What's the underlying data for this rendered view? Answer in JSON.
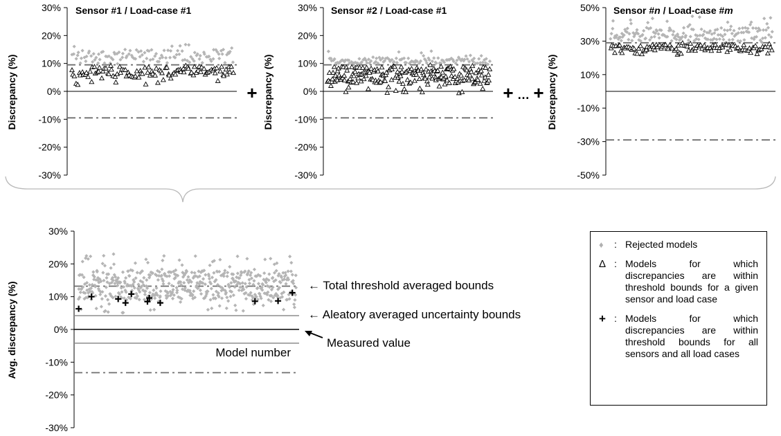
{
  "chart_data": [
    {
      "type": "scatter",
      "id": "panel1",
      "title": "Sensor #1 / Load-case #1",
      "ylabel": "Discrepancy (%)",
      "ylim": [
        -30,
        30
      ],
      "yticks": [
        "30%",
        "20%",
        "10%",
        "0%",
        "-10%",
        "-20%",
        "-30%"
      ],
      "threshold_bounds": [
        9.5,
        -9.5
      ],
      "measured_value": 0,
      "series": [
        {
          "name": "Rejected models",
          "band": [
            9,
            19
          ],
          "typical": [
            10,
            15
          ]
        },
        {
          "name": "Accepted (within threshold)",
          "band": [
            2,
            9.5
          ],
          "typical": [
            5,
            9
          ]
        }
      ]
    },
    {
      "type": "scatter",
      "id": "panel2",
      "title": "Sensor #2 / Load-case #1",
      "ylabel": "Discrepancy (%)",
      "ylim": [
        -30,
        30
      ],
      "yticks": [
        "30%",
        "20%",
        "10%",
        "0%",
        "-10%",
        "-20%",
        "-30%"
      ],
      "threshold_bounds": [
        9.5,
        -9.5
      ],
      "measured_value": 0,
      "series": [
        {
          "name": "Rejected models",
          "band": [
            9.5,
            15
          ],
          "typical": [
            10,
            12
          ]
        },
        {
          "name": "Accepted (within threshold)",
          "band": [
            -1,
            9.5
          ],
          "typical": [
            3,
            9
          ]
        }
      ]
    },
    {
      "type": "scatter",
      "id": "panel3",
      "title_parts": [
        "Sensor #",
        "n",
        " / Load-case #",
        "m"
      ],
      "ylabel": "Discrepancy (%)",
      "ylim": [
        -50,
        50
      ],
      "yticks": [
        "50%",
        "30%",
        "10%",
        "-10%",
        "-30%",
        "-50%"
      ],
      "threshold_bounds": [
        29,
        -29
      ],
      "measured_value": 0,
      "series": [
        {
          "name": "Rejected models",
          "band": [
            28,
            45
          ],
          "typical": [
            30,
            38
          ]
        },
        {
          "name": "Accepted (within threshold)",
          "band": [
            22,
            29
          ],
          "typical": [
            24,
            28
          ]
        }
      ]
    },
    {
      "type": "scatter",
      "id": "combined",
      "ylabel": "Avg. discrepancy (%)",
      "xlabel": "Model number",
      "ylim": [
        -30,
        30
      ],
      "yticks": [
        "30%",
        "20%",
        "10%",
        "0%",
        "-10%",
        "-20%",
        "-30%"
      ],
      "total_threshold_bounds": [
        13.2,
        -13.2
      ],
      "aleatory_bounds": [
        4.2,
        -4.2
      ],
      "measured_value": 0,
      "series": [
        {
          "name": "Rejected models",
          "band": [
            5,
            23
          ],
          "typical": [
            9,
            18
          ]
        },
        {
          "name": "Models within threshold for all sensors and load cases",
          "x": [
            5,
            40,
            113,
            133,
            149,
            193,
            198,
            228,
            487,
            550,
            589
          ],
          "y": [
            6.3,
            10.0,
            9.3,
            8.1,
            10.8,
            8.5,
            9.6,
            8.1,
            8.6,
            8.7,
            11.2
          ]
        }
      ]
    }
  ],
  "operators": {
    "plus": "+",
    "ellipsis": "…"
  },
  "annotations": {
    "total": "← Total threshold averaged bounds",
    "aleatory": "← Aleatory averaged uncertainty bounds",
    "measured": "Measured value"
  },
  "legend": {
    "rejected": {
      "symbol": "♦",
      "colon": ":",
      "text": "Rejected models"
    },
    "delta": {
      "symbol": "Δ",
      "colon": ":",
      "text": "Models for which discrepancies are within threshold bounds for a given sensor and load case"
    },
    "plus": {
      "symbol": "+",
      "colon": ":",
      "text": "Models for which discrepancies are within threshold bounds for all sensors and all load cases"
    }
  },
  "colors": {
    "rejected": "#b5b5b5",
    "accepted": "#000000",
    "threshold": "#6e6e6e",
    "aleatory": "#8c8c8c",
    "axis": "#000000"
  }
}
